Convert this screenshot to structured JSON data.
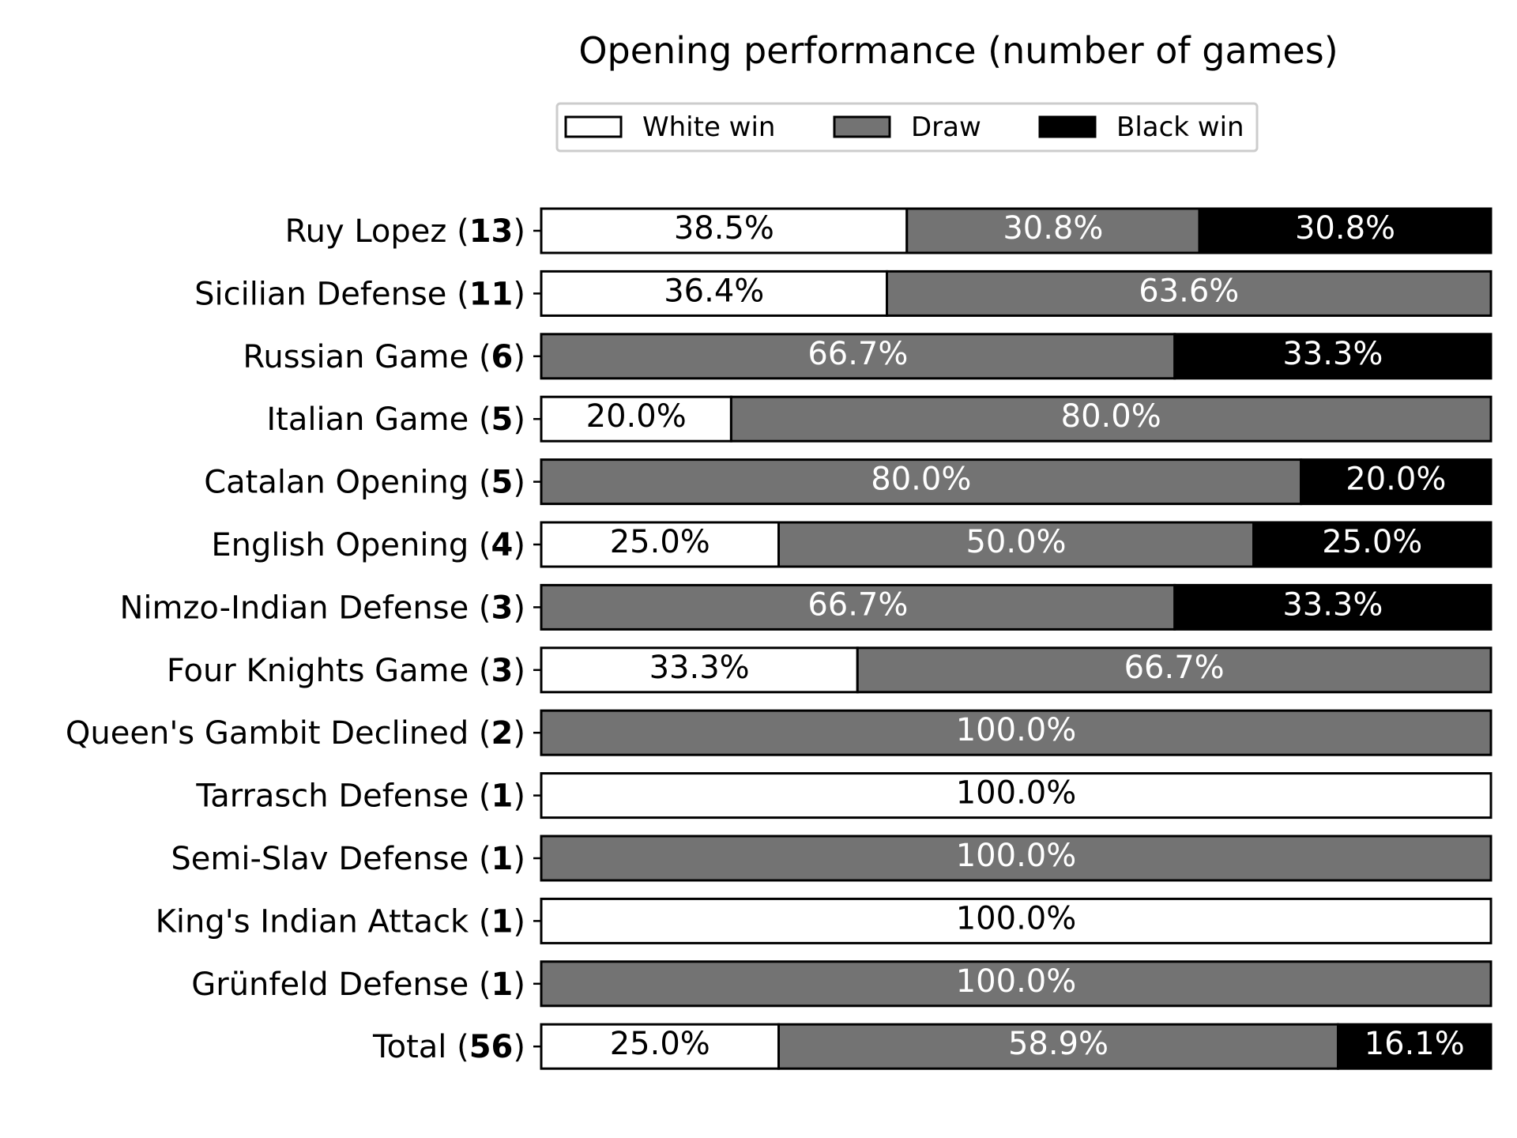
{
  "chart_data": {
    "type": "bar",
    "orientation": "horizontal",
    "stacked": true,
    "normalized": true,
    "title": "Opening performance (number of games)",
    "legend": {
      "placement": "top-center",
      "entries": [
        "White win",
        "Draw",
        "Black win"
      ]
    },
    "categories": [
      {
        "name": "Ruy Lopez",
        "count": "13"
      },
      {
        "name": "Sicilian Defense",
        "count": "11"
      },
      {
        "name": "Russian Game",
        "count": "6"
      },
      {
        "name": "Italian Game",
        "count": "5"
      },
      {
        "name": "Catalan Opening",
        "count": "5"
      },
      {
        "name": "English Opening",
        "count": "4"
      },
      {
        "name": "Nimzo-Indian Defense",
        "count": "3"
      },
      {
        "name": "Four Knights Game",
        "count": "3"
      },
      {
        "name": "Queen's Gambit Declined",
        "count": "2"
      },
      {
        "name": "Tarrasch Defense",
        "count": "1"
      },
      {
        "name": "Semi-Slav Defense",
        "count": "1"
      },
      {
        "name": "King's Indian Attack",
        "count": "1"
      },
      {
        "name": "Grünfeld Defense",
        "count": "1"
      },
      {
        "name": "Total",
        "count": "56"
      }
    ],
    "series": [
      {
        "name": "White win",
        "color": "#ffffff",
        "label_color": "#000000",
        "values": [
          38.5,
          36.4,
          0,
          20.0,
          0,
          25.0,
          0,
          33.3,
          0,
          100.0,
          0,
          100.0,
          0,
          25.0
        ],
        "labels": [
          "38.5%",
          "36.4%",
          "",
          "20.0%",
          "",
          "25.0%",
          "",
          "33.3%",
          "",
          "100.0%",
          "",
          "100.0%",
          "",
          "25.0%"
        ]
      },
      {
        "name": "Draw",
        "color": "#737373",
        "label_color": "#ffffff",
        "values": [
          30.8,
          63.6,
          66.7,
          80.0,
          80.0,
          50.0,
          66.7,
          66.7,
          100.0,
          0,
          100.0,
          0,
          100.0,
          58.9
        ],
        "labels": [
          "30.8%",
          "63.6%",
          "66.7%",
          "80.0%",
          "80.0%",
          "50.0%",
          "66.7%",
          "66.7%",
          "100.0%",
          "",
          "100.0%",
          "",
          "100.0%",
          "58.9%"
        ]
      },
      {
        "name": "Black win",
        "color": "#000000",
        "label_color": "#ffffff",
        "values": [
          30.8,
          0,
          33.3,
          0,
          20.0,
          25.0,
          33.3,
          0,
          0,
          0,
          0,
          0,
          0,
          16.1
        ],
        "labels": [
          "30.8%",
          "",
          "33.3%",
          "",
          "20.0%",
          "25.0%",
          "33.3%",
          "",
          "",
          "",
          "",
          "",
          "",
          "16.1%"
        ]
      }
    ],
    "xlim": [
      0,
      100
    ],
    "x_axis_visible": false,
    "grid": false
  }
}
